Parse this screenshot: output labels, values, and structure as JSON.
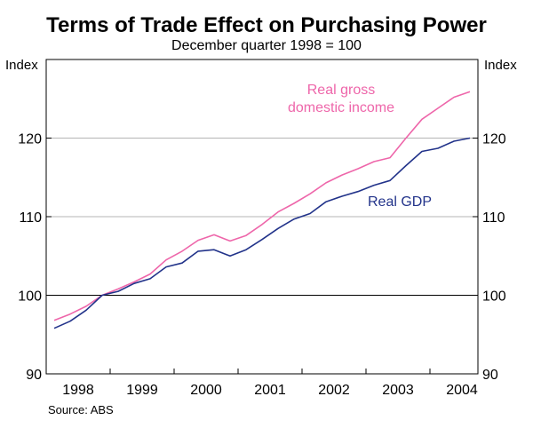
{
  "chart_data": {
    "type": "line",
    "title": "Terms of Trade Effect on Purchasing Power",
    "subtitle": "December quarter 1998 = 100",
    "ylabel_left": "Index",
    "ylabel_right": "Index",
    "ylim": [
      90,
      130
    ],
    "yticks": [
      90,
      100,
      110,
      120
    ],
    "gridlines_at": [
      100,
      110,
      120
    ],
    "x_categories": [
      "1998",
      "1999",
      "2000",
      "2001",
      "2002",
      "2003",
      "2004"
    ],
    "x_start": 1998.0,
    "x_end": 2004.75,
    "source": "Source: ABS",
    "series": [
      {
        "name": "Real gross domestic income",
        "label_lines": [
          "Real gross",
          "domestic income"
        ],
        "color": "#ee66aa",
        "x": [
          1998.125,
          1998.375,
          1998.625,
          1998.875,
          1999.125,
          1999.375,
          1999.625,
          1999.875,
          2000.125,
          2000.375,
          2000.625,
          2000.875,
          2001.125,
          2001.375,
          2001.625,
          2001.875,
          2002.125,
          2002.375,
          2002.625,
          2002.875,
          2003.125,
          2003.375,
          2003.625,
          2003.875,
          2004.125,
          2004.375,
          2004.625
        ],
        "values": [
          96.8,
          97.6,
          98.6,
          100.0,
          100.8,
          101.7,
          102.7,
          104.5,
          105.6,
          107.0,
          107.7,
          106.9,
          107.6,
          109.0,
          110.6,
          111.7,
          112.9,
          114.3,
          115.3,
          116.1,
          117.0,
          117.5,
          120.0,
          122.4,
          123.8,
          125.2,
          125.9
        ]
      },
      {
        "name": "Real GDP",
        "label_lines": [
          "Real GDP"
        ],
        "color": "#22338a",
        "x": [
          1998.125,
          1998.375,
          1998.625,
          1998.875,
          1999.125,
          1999.375,
          1999.625,
          1999.875,
          2000.125,
          2000.375,
          2000.625,
          2000.875,
          2001.125,
          2001.375,
          2001.625,
          2001.875,
          2002.125,
          2002.375,
          2002.625,
          2002.875,
          2003.125,
          2003.375,
          2003.625,
          2003.875,
          2004.125,
          2004.375,
          2004.625
        ],
        "values": [
          95.8,
          96.7,
          98.1,
          100.0,
          100.5,
          101.5,
          102.1,
          103.6,
          104.1,
          105.6,
          105.8,
          105.0,
          105.8,
          107.1,
          108.5,
          109.7,
          110.4,
          111.9,
          112.6,
          113.2,
          114.0,
          114.6,
          116.5,
          118.3,
          118.7,
          119.6,
          120.0
        ]
      }
    ]
  }
}
